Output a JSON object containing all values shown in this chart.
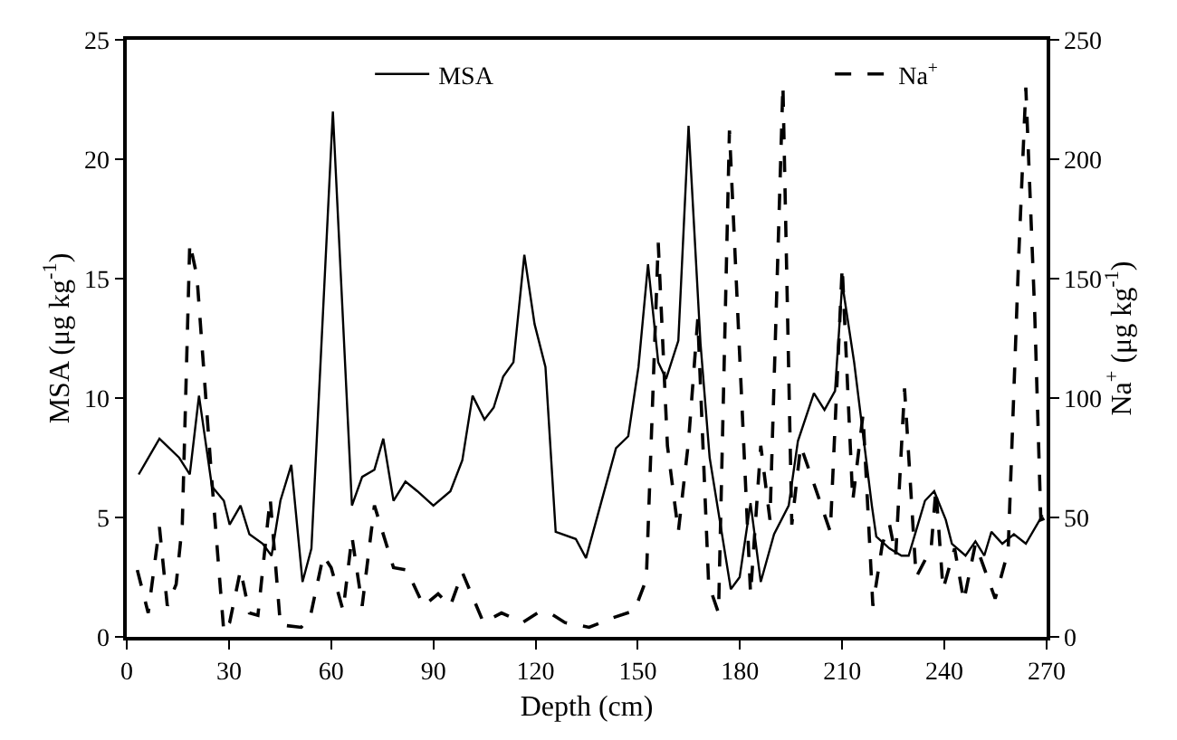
{
  "chart_data": {
    "type": "line",
    "xlabel": "Depth (cm)",
    "ylabel": "MSA (μg kg$^{-1}$)",
    "y2label": "Na$^{+}$ (μg kg$^{-1}$)",
    "xlim": [
      0,
      270
    ],
    "xticks": [
      0,
      30,
      60,
      90,
      120,
      150,
      180,
      210,
      240,
      270
    ],
    "ylim": [
      0,
      25
    ],
    "yticks": [
      0,
      5,
      10,
      15,
      20,
      25
    ],
    "y2lim": [
      0,
      250
    ],
    "y2ticks": [
      0,
      50,
      100,
      150,
      200,
      250
    ],
    "legend": "top",
    "marker": "none",
    "series": [
      {
        "name": "MSA",
        "color": "#000000",
        "line_style": "solid",
        "x": [
          3.5,
          9.6,
          15.4,
          18.5,
          21.2,
          25,
          28.5,
          30.2,
          33.4,
          36,
          39.9,
          42.5,
          45.1,
          48.3,
          51.6,
          54.2,
          60.5,
          66.1,
          69.1,
          72.7,
          75.3,
          78.3,
          81.8,
          85.3,
          90,
          95,
          98.5,
          101.5,
          105,
          107.7,
          110.5,
          113.5,
          116.7,
          119.7,
          122.9,
          125.9,
          131.8,
          134.8,
          139.2,
          143.6,
          147.2,
          150.2,
          153,
          156,
          158.3,
          161.9,
          164.9,
          168.4,
          171.1,
          174.6,
          177.3,
          179.9,
          183.1,
          186.1,
          190,
          194.3,
          197,
          201.7,
          204.8,
          207.9,
          210,
          213.5,
          218.7,
          220,
          223.9,
          227.4,
          229.5,
          234.3,
          237,
          240.4,
          242.2,
          246.2,
          249.1,
          251.7,
          253.8,
          257,
          260.4,
          263.9,
          268.8
        ],
        "values": [
          6.8,
          8.3,
          7.5,
          6.8,
          10.1,
          6.3,
          5.7,
          4.7,
          5.5,
          4.3,
          3.9,
          3.4,
          5.7,
          7.2,
          2.3,
          3.7,
          22.0,
          5.5,
          6.7,
          7.0,
          8.3,
          5.7,
          6.5,
          6.1,
          5.5,
          6.1,
          7.4,
          10.1,
          9.1,
          9.6,
          10.9,
          11.5,
          16.0,
          13.1,
          11.3,
          4.4,
          4.1,
          3.3,
          5.6,
          7.9,
          8.4,
          11.3,
          15.6,
          11.5,
          10.8,
          12.4,
          21.4,
          12.3,
          7.5,
          4.4,
          2.0,
          2.5,
          5.6,
          2.3,
          4.3,
          5.5,
          8.2,
          10.2,
          9.5,
          10.3,
          14.8,
          11.5,
          5.5,
          4.2,
          3.7,
          3.4,
          3.4,
          5.7,
          6.1,
          4.9,
          3.9,
          3.4,
          4.0,
          3.4,
          4.4,
          3.9,
          4.3,
          3.9,
          5.1
        ]
      },
      {
        "name": "Na$^{+}$",
        "color": "#000000",
        "line_style": "dashed",
        "axis": "y2",
        "x": [
          3.1,
          6.3,
          9.6,
          11.9,
          14.5,
          16.3,
          18.5,
          20.6,
          25,
          28.5,
          30.2,
          33.4,
          36,
          38.5,
          42.1,
          45.1,
          51.2,
          53.8,
          57.7,
          60,
          63.5,
          66.1,
          69.1,
          72.7,
          78.3,
          82.2,
          87.1,
          91.4,
          95,
          98.5,
          104.7,
          110,
          116.2,
          120.6,
          124.2,
          128.6,
          135.7,
          142.7,
          149,
          152.5,
          156,
          158.7,
          161.9,
          164.9,
          167.6,
          170.8,
          173.7,
          176.9,
          179.9,
          183.1,
          186.1,
          188.8,
          192.6,
          195.2,
          197.8,
          202.2,
          206.5,
          210,
          213.1,
          216.1,
          219,
          221.8,
          223.9,
          225.7,
          228.3,
          231.7,
          236.1,
          237.5,
          239.6,
          243,
          245.7,
          249.1,
          254.9,
          258.7,
          261.8,
          263.9,
          266.5,
          268.3,
          270
        ],
        "values": [
          28,
          10,
          46,
          13,
          22,
          47,
          165,
          151,
          65,
          2,
          6,
          28,
          10,
          9,
          58,
          5,
          4,
          8,
          34,
          29,
          11,
          42,
          13,
          55,
          29,
          28,
          13,
          18,
          13,
          27,
          6,
          10,
          6,
          10,
          10,
          6,
          4,
          8,
          11,
          24,
          165,
          80,
          44,
          82,
          133,
          22,
          10,
          212,
          118,
          18,
          80,
          49,
          231,
          47,
          80,
          62,
          44,
          155,
          57,
          93,
          13,
          39,
          47,
          34,
          104,
          25,
          37,
          62,
          20,
          37,
          15,
          39,
          16,
          36,
          159,
          230,
          136,
          49,
          50
        ]
      }
    ]
  }
}
